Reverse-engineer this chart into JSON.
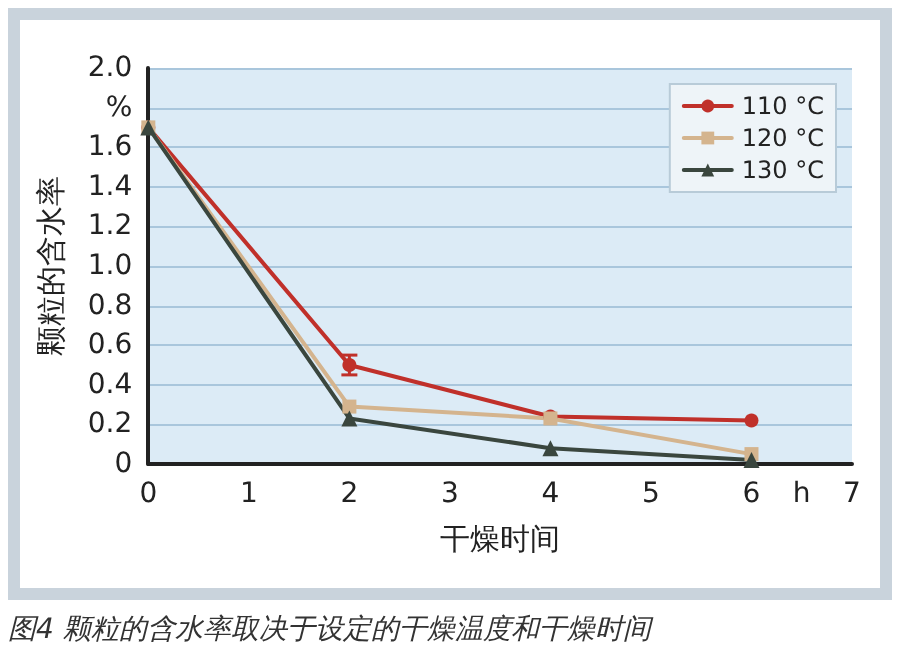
{
  "chart_data": {
    "type": "line",
    "xlabel": "干燥时间",
    "ylabel": "颗粒的含水率",
    "annotations": [
      "图4  颗粒的含水率取决于设定的干燥温度和干燥时间"
    ],
    "x": [
      0,
      2,
      4,
      6
    ],
    "series": [
      {
        "name": "110 °C",
        "color": "#c0302a",
        "marker": "circle",
        "values": [
          1.7,
          0.5,
          0.24,
          0.22
        ],
        "errors": [
          null,
          0.05,
          null,
          null
        ]
      },
      {
        "name": "120 °C",
        "color": "#d4b48e",
        "marker": "square",
        "values": [
          1.7,
          0.29,
          0.23,
          0.05
        ]
      },
      {
        "name": "130 °C",
        "color": "#3a463e",
        "marker": "triangle",
        "values": [
          1.7,
          0.23,
          0.08,
          0.02
        ]
      }
    ],
    "xlim": [
      0,
      7
    ],
    "xticks": [
      0,
      1,
      2,
      3,
      4,
      5,
      6,
      {
        "value": 6.5,
        "label": "h"
      },
      7
    ],
    "ylim": [
      0,
      2
    ],
    "yticks": [
      0,
      0.2,
      0.4,
      0.6,
      0.8,
      {
        "value": 1,
        "label": "1.0"
      },
      1.2,
      1.4,
      1.6,
      {
        "value": 1.8,
        "label": "%"
      },
      {
        "value": 2,
        "label": "2.0"
      }
    ],
    "grid": "y",
    "legend": "top right"
  }
}
